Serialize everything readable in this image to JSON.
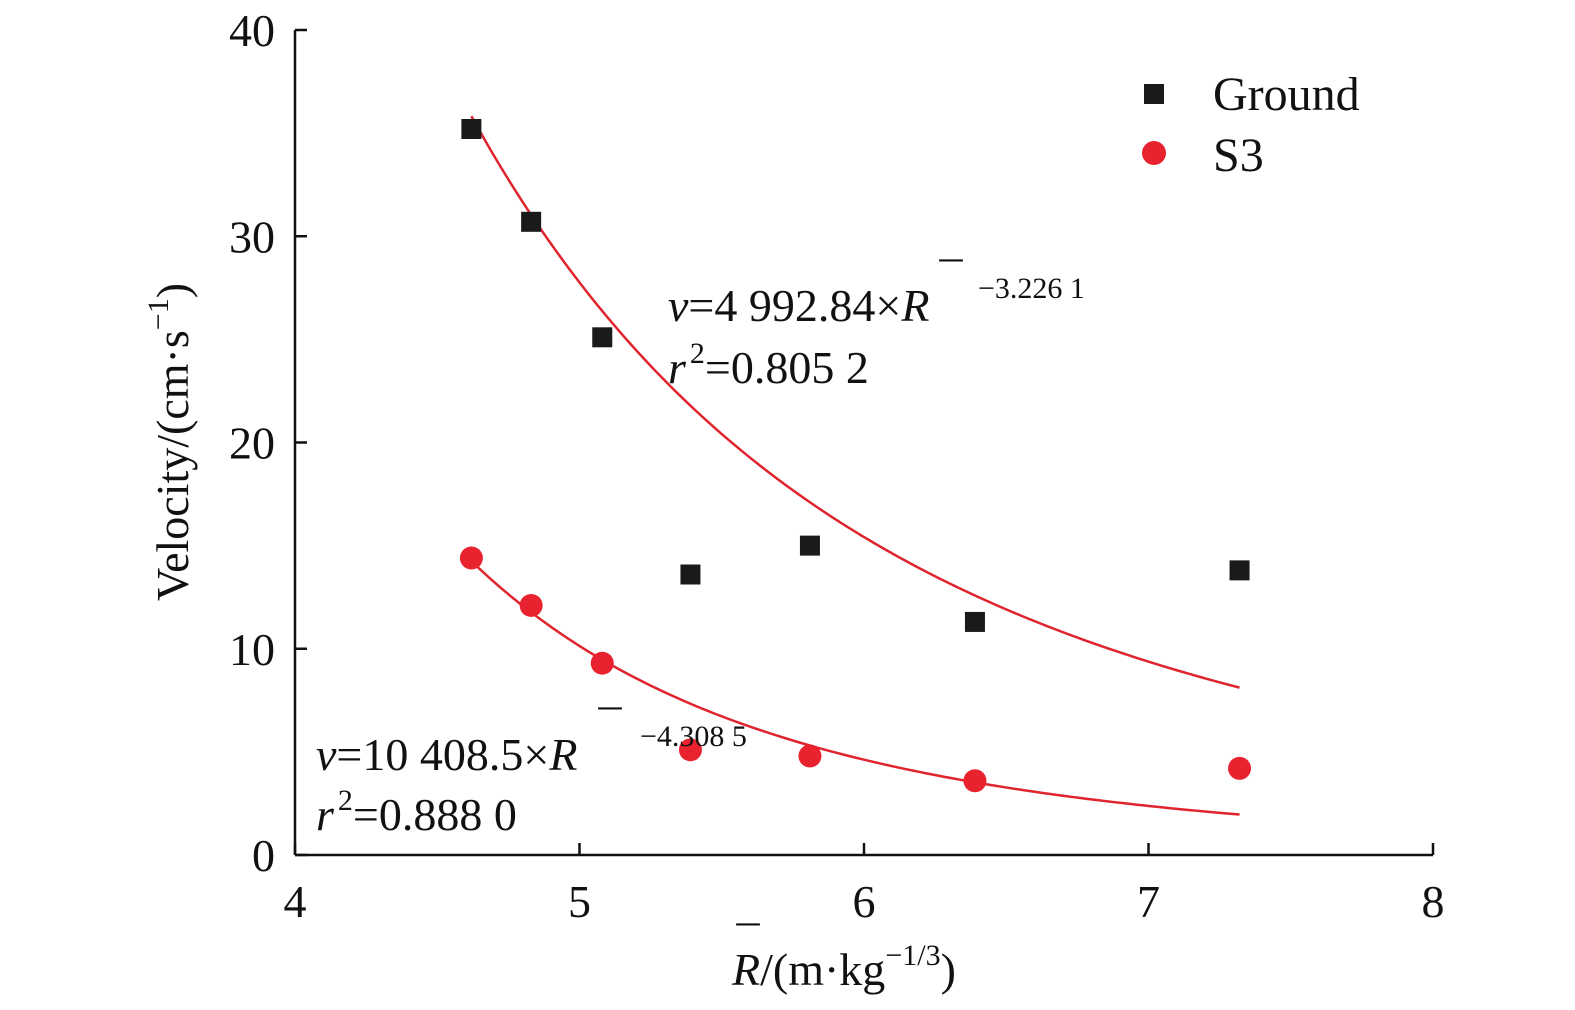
{
  "chart_data": {
    "type": "scatter",
    "xlim": [
      4,
      8
    ],
    "ylim": [
      0,
      40
    ],
    "x_ticks": [
      4,
      5,
      6,
      7,
      8
    ],
    "y_ticks": [
      0,
      10,
      20,
      30,
      40
    ],
    "x_tick_labels": [
      "4",
      "5",
      "6",
      "7",
      "8"
    ],
    "y_tick_labels": [
      "0",
      "10",
      "20",
      "30",
      "40"
    ],
    "xlabel": {
      "symbol": "R",
      "bar": "¯",
      "unit_open": "/(m·kg",
      "unit_exp": "−1/3",
      "unit_close": ")"
    },
    "ylabel": {
      "main": "Velocity/(cm·s",
      "exp": "−1",
      "close": ")"
    },
    "grid": false,
    "legend_position": "top-right",
    "series": [
      {
        "name": "Ground",
        "marker": "square",
        "color": "#1a1a1a",
        "points": [
          {
            "x": 4.62,
            "y": 35.2
          },
          {
            "x": 4.83,
            "y": 30.7
          },
          {
            "x": 5.08,
            "y": 25.1
          },
          {
            "x": 5.39,
            "y": 13.6
          },
          {
            "x": 5.81,
            "y": 15.0
          },
          {
            "x": 6.39,
            "y": 11.3
          },
          {
            "x": 7.32,
            "y": 13.8
          }
        ],
        "fit": {
          "coefficient": 4992.84,
          "exponent": -3.2261,
          "x_start": 4.62,
          "x_end": 7.32,
          "color": "#e0242e",
          "equation": {
            "v": "v",
            "eq_part": "=4 992.84×",
            "R": "R",
            "bar": "¯",
            "exp": "−3.226 1",
            "r": "r",
            "r_sup": "2",
            "r_value": "=0.805 2"
          }
        }
      },
      {
        "name": "S3",
        "marker": "circle",
        "color": "#e8222e",
        "points": [
          {
            "x": 4.62,
            "y": 14.4
          },
          {
            "x": 4.83,
            "y": 12.1
          },
          {
            "x": 5.08,
            "y": 9.3
          },
          {
            "x": 5.39,
            "y": 5.1
          },
          {
            "x": 5.81,
            "y": 4.8
          },
          {
            "x": 6.39,
            "y": 3.6
          },
          {
            "x": 7.32,
            "y": 4.2
          }
        ],
        "fit": {
          "coefficient": 10408.5,
          "exponent": -4.3085,
          "x_start": 4.62,
          "x_end": 7.32,
          "color": "#e0242e",
          "equation": {
            "v": "v",
            "eq_part": "=10 408.5×",
            "R": "R",
            "bar": "¯",
            "exp": "−4.308 5",
            "r": "r",
            "r_sup": "2",
            "r_value": "=0.888 0"
          }
        }
      }
    ]
  }
}
